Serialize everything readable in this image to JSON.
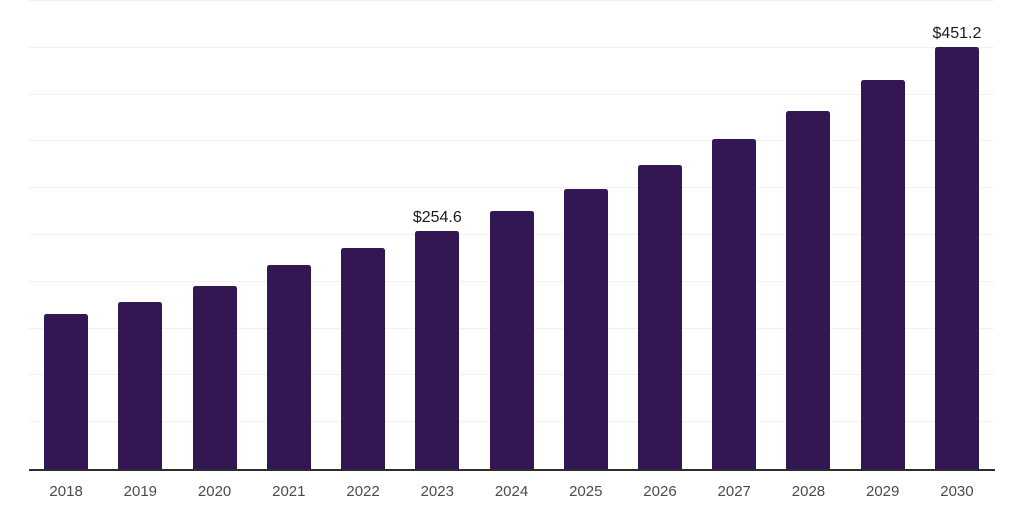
{
  "chart_data": {
    "type": "bar",
    "title": "",
    "xlabel": "",
    "ylabel": "",
    "categories": [
      "2018",
      "2019",
      "2020",
      "2021",
      "2022",
      "2023",
      "2024",
      "2025",
      "2026",
      "2027",
      "2028",
      "2029",
      "2030"
    ],
    "values": [
      165.5,
      178.5,
      195.5,
      218.0,
      236.0,
      254.6,
      275.5,
      299.0,
      325.0,
      352.5,
      382.5,
      415.5,
      451.2
    ],
    "point_labels": [
      "",
      "",
      "",
      "",
      "",
      "$254.6",
      "",
      "",
      "",
      "",
      "",
      "",
      "$451.2"
    ],
    "ylim": [
      0,
      500
    ],
    "gridlines": [
      50,
      100,
      150,
      200,
      250,
      300,
      350,
      400,
      450,
      500
    ],
    "grid": "horizontal-only",
    "legend": false,
    "colors": {
      "bar": "#331753",
      "gridline": "#f1f1f1",
      "axis_line": "#2d2d2d",
      "tick_label": "#4b4b4b",
      "value_label": "#1c1c1c",
      "background": "#ffffff"
    }
  }
}
